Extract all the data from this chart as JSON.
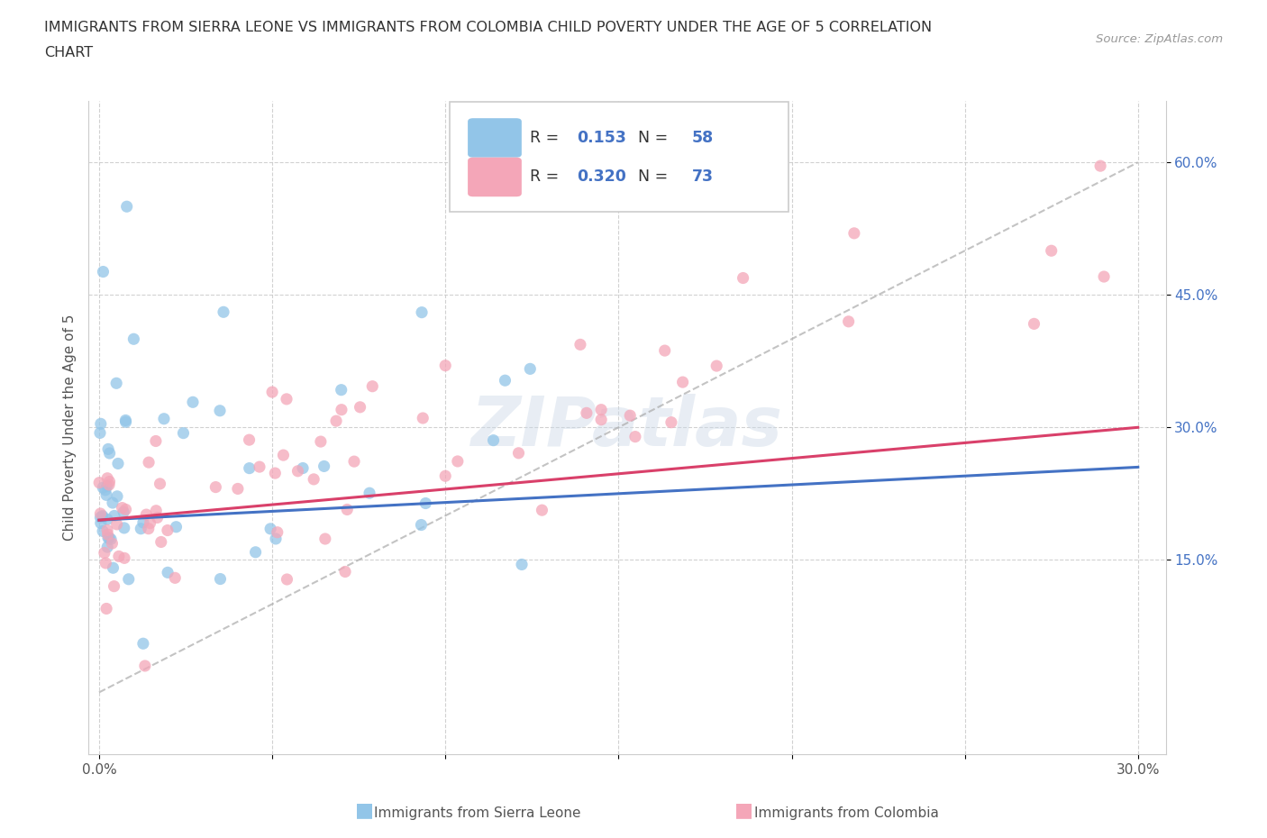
{
  "title_line1": "IMMIGRANTS FROM SIERRA LEONE VS IMMIGRANTS FROM COLOMBIA CHILD POVERTY UNDER THE AGE OF 5 CORRELATION",
  "title_line2": "CHART",
  "source": "Source: ZipAtlas.com",
  "ylabel": "Child Poverty Under the Age of 5",
  "color_sl": "#92c5e8",
  "color_col": "#f4a6b8",
  "color_sl_line": "#4472c4",
  "color_col_line": "#d9406a",
  "R_sl": 0.153,
  "N_sl": 58,
  "R_col": 0.32,
  "N_col": 73,
  "watermark": "ZIPatlas",
  "legend_label_sl": "Immigrants from Sierra Leone",
  "legend_label_col": "Immigrants from Colombia",
  "xlim_min": -0.003,
  "xlim_max": 0.308,
  "ylim_min": -0.07,
  "ylim_max": 0.67,
  "xticks": [
    0.0,
    0.05,
    0.1,
    0.15,
    0.2,
    0.25,
    0.3
  ],
  "xtick_labels": [
    "0.0%",
    "",
    "",
    "",
    "",
    "",
    "30.0%"
  ],
  "yticks": [
    0.15,
    0.3,
    0.45,
    0.6
  ],
  "ytick_labels": [
    "15.0%",
    "30.0%",
    "45.0%",
    "60.0%"
  ]
}
